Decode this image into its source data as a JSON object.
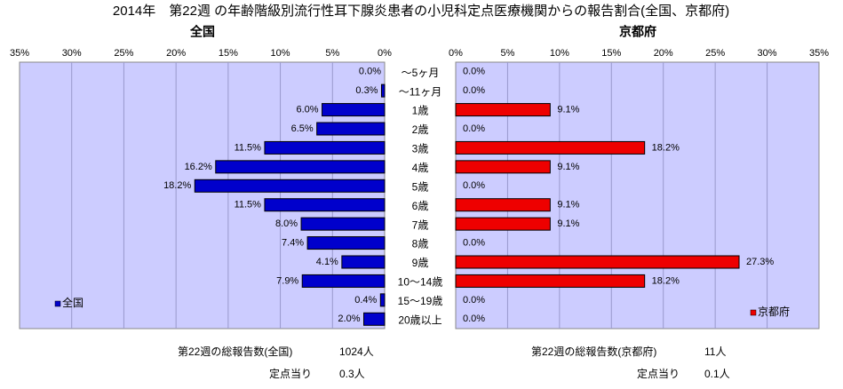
{
  "title": "2014年　第22週 の年齢階級別流行性耳下腺炎患者の小児科定点医療機関からの報告割合(全国、京都府)",
  "colors": {
    "national": "#0000CC",
    "kyoto": "#EE0000",
    "plot_bg": "#CCCCFF",
    "grid": "#9999CC"
  },
  "chart_data": [
    {
      "type": "bar",
      "orientation": "horizontal",
      "direction": "right-to-left",
      "title": "全国",
      "xlim": [
        0,
        35
      ],
      "tick_labels": [
        "35%",
        "30%",
        "25%",
        "20%",
        "15%",
        "10%",
        "5%",
        "0%"
      ],
      "legend": "全国",
      "legend_position": "bottom-left",
      "categories": [
        "～5ヶ月",
        "～11ヶ月",
        "1歳",
        "2歳",
        "3歳",
        "4歳",
        "5歳",
        "6歳",
        "7歳",
        "8歳",
        "9歳",
        "10～14歳",
        "15～19歳",
        "20歳以上"
      ],
      "values": [
        0.0,
        0.3,
        6.0,
        6.5,
        11.5,
        16.2,
        18.2,
        11.5,
        8.0,
        7.4,
        4.1,
        7.9,
        0.4,
        2.0
      ],
      "value_labels": [
        "0.0%",
        "0.3%",
        "6.0%",
        "6.5%",
        "11.5%",
        "16.2%",
        "18.2%",
        "11.5%",
        "8.0%",
        "7.4%",
        "4.1%",
        "7.9%",
        "0.4%",
        "2.0%"
      ]
    },
    {
      "type": "bar",
      "orientation": "horizontal",
      "direction": "left-to-right",
      "title": "京都府",
      "xlim": [
        0,
        35
      ],
      "tick_labels": [
        "0%",
        "5%",
        "10%",
        "15%",
        "20%",
        "25%",
        "30%",
        "35%"
      ],
      "legend": "京都府",
      "legend_position": "bottom-right",
      "categories": [
        "～5ヶ月",
        "～11ヶ月",
        "1歳",
        "2歳",
        "3歳",
        "4歳",
        "5歳",
        "6歳",
        "7歳",
        "8歳",
        "9歳",
        "10～14歳",
        "15～19歳",
        "20歳以上"
      ],
      "values": [
        0.0,
        0.0,
        9.1,
        0.0,
        18.2,
        9.1,
        0.0,
        9.1,
        9.1,
        0.0,
        27.3,
        18.2,
        0.0,
        0.0
      ],
      "value_labels": [
        "0.0%",
        "0.0%",
        "9.1%",
        "0.0%",
        "18.2%",
        "9.1%",
        "0.0%",
        "9.1%",
        "9.1%",
        "0.0%",
        "27.3%",
        "18.2%",
        "0.0%",
        "0.0%"
      ]
    }
  ],
  "footer": {
    "national_total_label": "第22週の総報告数(全国)",
    "national_total_value": "1024人",
    "national_per_label": "定点当り",
    "national_per_value": "0.3人",
    "kyoto_total_label": "第22週の総報告数(京都府)",
    "kyoto_total_value": "11人",
    "kyoto_per_label": "定点当り",
    "kyoto_per_value": "0.1人"
  }
}
